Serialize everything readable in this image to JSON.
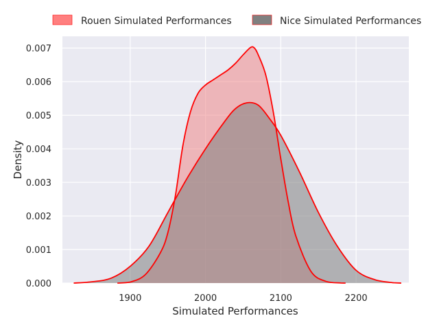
{
  "chart_data": {
    "type": "area",
    "title": "",
    "xlabel": "Simulated Performances",
    "ylabel": "Density",
    "xlim": [
      1810,
      2270
    ],
    "ylim": [
      0,
      0.00735
    ],
    "x_ticks": [
      1900,
      2000,
      2100,
      2200
    ],
    "y_ticks": [
      0.0,
      0.001,
      0.002,
      0.003,
      0.004,
      0.005,
      0.006,
      0.007
    ],
    "y_tick_labels": [
      "0.000",
      "0.001",
      "0.002",
      "0.003",
      "0.004",
      "0.005",
      "0.006",
      "0.007"
    ],
    "grid": true,
    "legend_position": "top",
    "background": "#eaeaf2",
    "line_color": "#ff0000",
    "series": [
      {
        "name": "Rouen Simulated Performances",
        "fill": "#f08080",
        "fill_opacity": 0.5,
        "legend_color": "#ff7f7f",
        "x": [
          1883,
          1900,
          1920,
          1940,
          1950,
          1960,
          1970,
          1980,
          1990,
          2000,
          2010,
          2020,
          2030,
          2040,
          2050,
          2060,
          2065,
          2070,
          2080,
          2090,
          2100,
          2110,
          2120,
          2140,
          2160,
          2180,
          2186
        ],
        "y": [
          0.0,
          3e-05,
          0.00025,
          0.0009,
          0.0015,
          0.0026,
          0.0041,
          0.0051,
          0.00565,
          0.0059,
          0.00605,
          0.0062,
          0.00635,
          0.00655,
          0.0068,
          0.00702,
          0.007,
          0.0068,
          0.0062,
          0.0051,
          0.0037,
          0.0024,
          0.0014,
          0.00035,
          5e-05,
          3e-06,
          0.0
        ]
      },
      {
        "name": "Nice Simulated Performances",
        "fill": "#808080",
        "fill_opacity": 0.55,
        "legend_color": "#808080",
        "x": [
          1825,
          1850,
          1875,
          1900,
          1925,
          1950,
          1975,
          2000,
          2025,
          2040,
          2055,
          2070,
          2085,
          2100,
          2125,
          2150,
          2175,
          2200,
          2225,
          2250,
          2260
        ],
        "y": [
          0.0,
          4e-05,
          0.00015,
          0.0005,
          0.0011,
          0.0021,
          0.0031,
          0.004,
          0.0048,
          0.0052,
          0.00537,
          0.0053,
          0.0049,
          0.0044,
          0.0033,
          0.0021,
          0.0011,
          0.00038,
          0.0001,
          1e-05,
          0.0
        ]
      }
    ]
  }
}
